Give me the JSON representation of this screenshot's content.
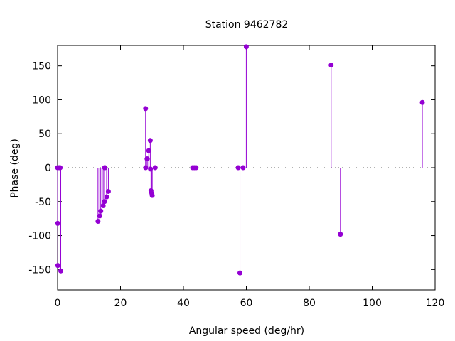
{
  "chart_data": {
    "type": "scatter",
    "style": "impulses-with-points",
    "title": "Station 9462782",
    "xlabel": "Angular speed (deg/hr)",
    "ylabel": "Phase (deg)",
    "xlim": [
      0,
      120
    ],
    "ylim": [
      -180,
      180
    ],
    "xticks": [
      0,
      20,
      40,
      60,
      80,
      100,
      120
    ],
    "yticks": [
      -150,
      -100,
      -50,
      0,
      50,
      100,
      150
    ],
    "zero_line": "dotted",
    "grid": false,
    "color": "#9400d3",
    "points": [
      {
        "x": 0.0,
        "y": 0
      },
      {
        "x": 0.04,
        "y": -82
      },
      {
        "x": 0.08,
        "y": -144
      },
      {
        "x": 0.55,
        "y": 0
      },
      {
        "x": 0.82,
        "y": 0
      },
      {
        "x": 1.02,
        "y": -152
      },
      {
        "x": 12.85,
        "y": -79
      },
      {
        "x": 13.4,
        "y": -71
      },
      {
        "x": 13.72,
        "y": -64
      },
      {
        "x": 14.49,
        "y": -56
      },
      {
        "x": 14.92,
        "y": -50
      },
      {
        "x": 14.96,
        "y": 0
      },
      {
        "x": 15.04,
        "y": 0
      },
      {
        "x": 15.59,
        "y": -43
      },
      {
        "x": 16.14,
        "y": -35
      },
      {
        "x": 27.97,
        "y": 87
      },
      {
        "x": 28.0,
        "y": 0
      },
      {
        "x": 28.44,
        "y": 13
      },
      {
        "x": 28.51,
        "y": 13
      },
      {
        "x": 28.99,
        "y": 25
      },
      {
        "x": 29.46,
        "y": 40
      },
      {
        "x": 29.53,
        "y": -2
      },
      {
        "x": 29.69,
        "y": -34
      },
      {
        "x": 29.96,
        "y": -38
      },
      {
        "x": 30.08,
        "y": -41
      },
      {
        "x": 31.02,
        "y": 0
      },
      {
        "x": 42.93,
        "y": 0
      },
      {
        "x": 43.48,
        "y": 0
      },
      {
        "x": 44.03,
        "y": 0
      },
      {
        "x": 57.42,
        "y": 0
      },
      {
        "x": 57.97,
        "y": -155
      },
      {
        "x": 58.98,
        "y": 0
      },
      {
        "x": 59.98,
        "y": 178
      },
      {
        "x": 86.95,
        "y": 151
      },
      {
        "x": 89.9,
        "y": -98
      },
      {
        "x": 115.94,
        "y": 96
      }
    ]
  }
}
